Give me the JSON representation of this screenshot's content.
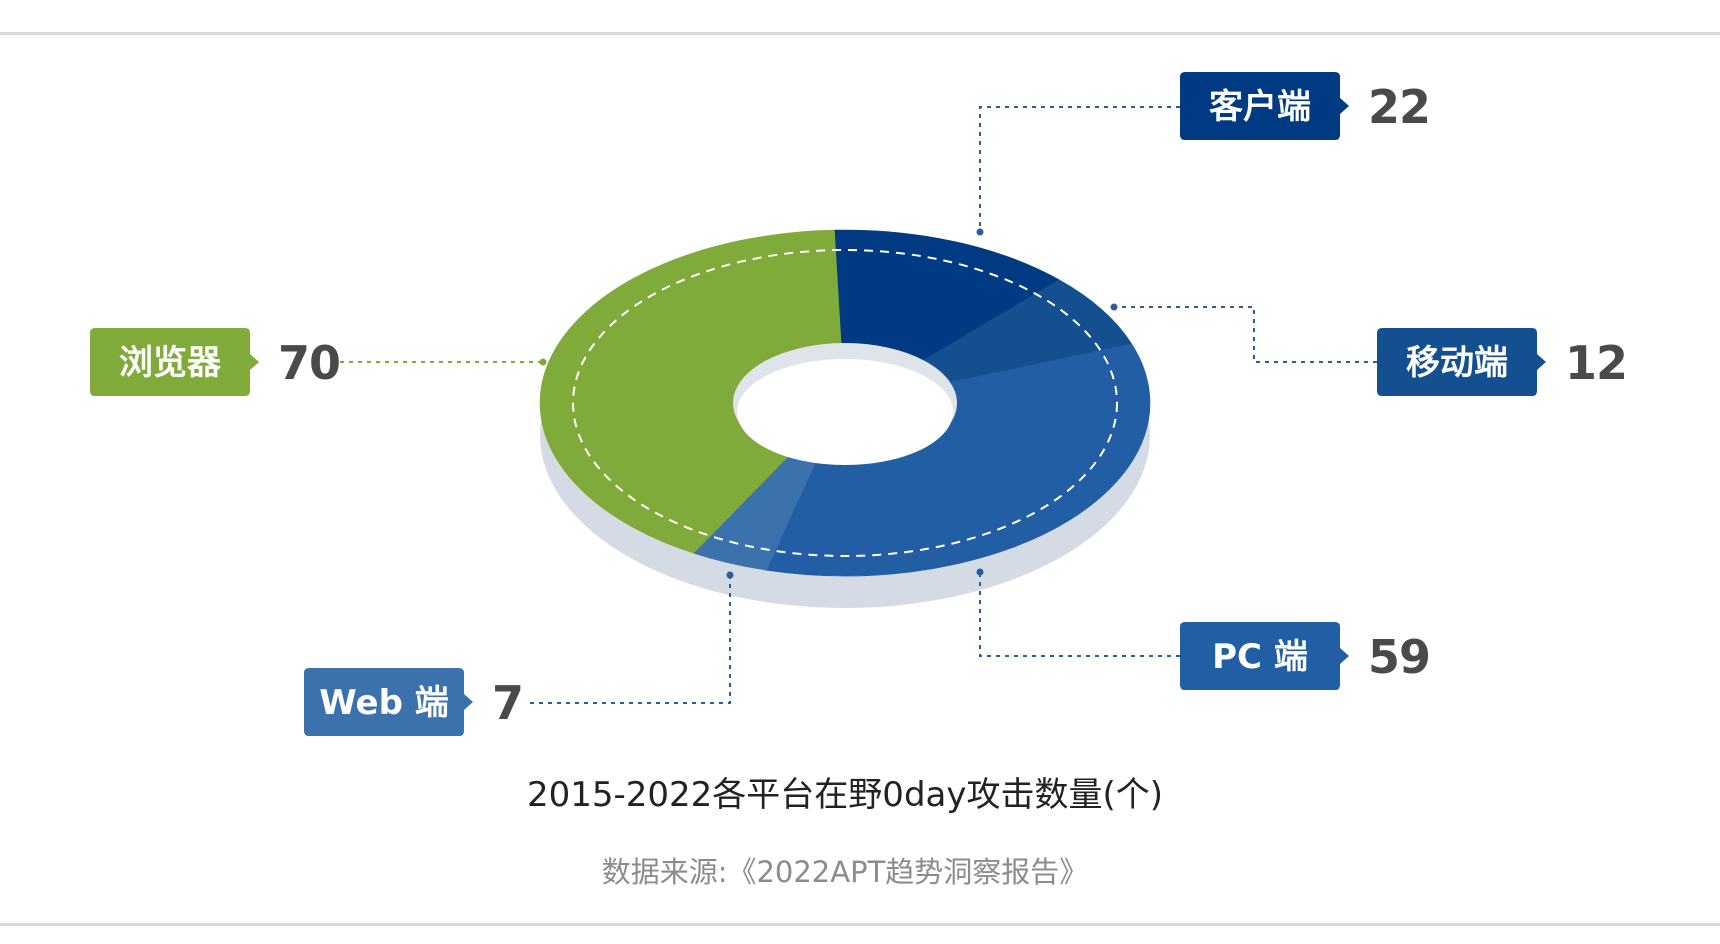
{
  "chart_data": {
    "type": "pie",
    "title": "2015-2022各平台在野0day攻击数量(个)",
    "source": "数据来源:《2022APT趋势洞察报告》",
    "slices": [
      {
        "key": "client",
        "label": "客户端",
        "value": 22,
        "color": "#003a83"
      },
      {
        "key": "mobile",
        "label": "移动端",
        "value": 12,
        "color": "#14508f"
      },
      {
        "key": "pc",
        "label": "PC 端",
        "value": 59,
        "color": "#215ea3"
      },
      {
        "key": "web",
        "label": "Web 端",
        "value": 7,
        "color": "#3b72ad"
      },
      {
        "key": "browser",
        "label": "浏览器",
        "value": 70,
        "color": "#80ab3a"
      }
    ],
    "legend": "callouts",
    "donut": true
  },
  "colors": {
    "shadow": "#d5dbe4",
    "hole_shadow": "#dfe3ea",
    "dashed_ring": "#ffffff",
    "value_text": "#4a4a4a",
    "leader_blue": "#2a5c9e",
    "leader_green": "#80ab3a",
    "rule": "#d9d9d9"
  }
}
